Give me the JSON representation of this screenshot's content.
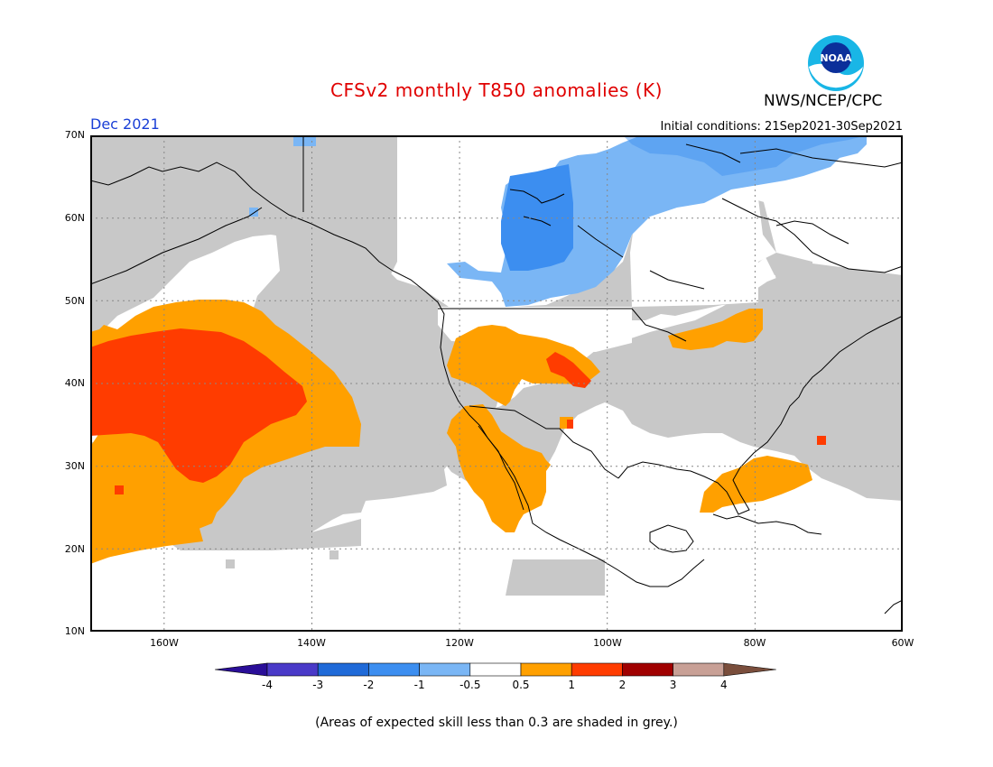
{
  "header": {
    "title": "CFSv2 monthly T850 anomalies (K)",
    "brand": "NWS/NCEP/CPC",
    "logo_text": "NOAA",
    "valid_month": "Dec 2021",
    "initial_conditions": "Initial conditions: 21Sep2021-30Sep2021"
  },
  "map": {
    "lat_labels": [
      "70N",
      "60N",
      "50N",
      "40N",
      "30N",
      "20N",
      "10N"
    ],
    "lon_labels": [
      "160W",
      "140W",
      "120W",
      "100W",
      "80W",
      "60W"
    ],
    "lat_range": [
      10,
      70
    ],
    "lon_range": [
      -170,
      -60
    ]
  },
  "legend": {
    "tick_labels": [
      "-4",
      "-3",
      "-2",
      "-1",
      "-0.5",
      "0.5",
      "1",
      "2",
      "3",
      "4"
    ],
    "colors": [
      "#2a0e98",
      "#4a3ac8",
      "#1f6ad8",
      "#3c8ef0",
      "#7ab6f5",
      "#ffffff",
      "#ffa000",
      "#ff3c00",
      "#a00000",
      "#c8a096",
      "#7a4e3c"
    ]
  },
  "colors": {
    "grey_skill": "#c8c8c8",
    "warm_1": "#ffa000",
    "warm_2": "#ff3c00",
    "cool_1": "#7ab6f5",
    "cool_2": "#3c8ef0",
    "title": "#e00000",
    "date": "#1a3fd6"
  },
  "footnote": "(Areas of expected skill less than 0.3 are shaded in grey.)"
}
